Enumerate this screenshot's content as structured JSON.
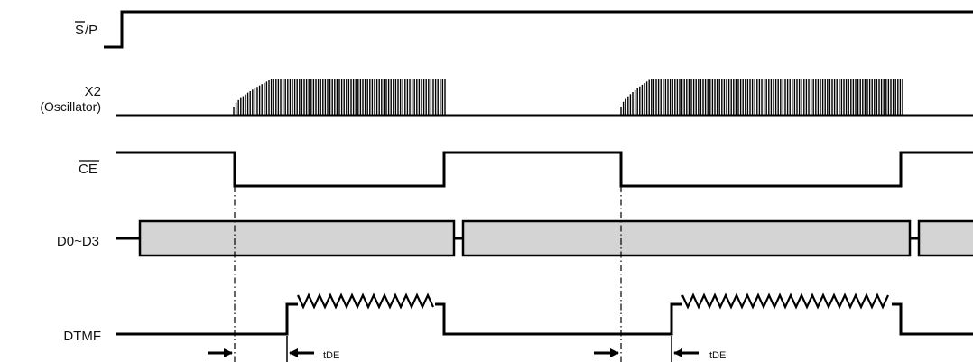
{
  "diagram": {
    "signals": {
      "sp": {
        "label_overbar": "S",
        "label_rest": "/P"
      },
      "x2": {
        "label_line1": "X2",
        "label_line2": "(Oscillator)"
      },
      "ce": {
        "label": "CE"
      },
      "d0d3": {
        "label": "D0~D3"
      },
      "dtmf": {
        "label": "DTMF"
      }
    },
    "timing": {
      "t1_label": "tDE",
      "t2_label": "tDE"
    }
  }
}
